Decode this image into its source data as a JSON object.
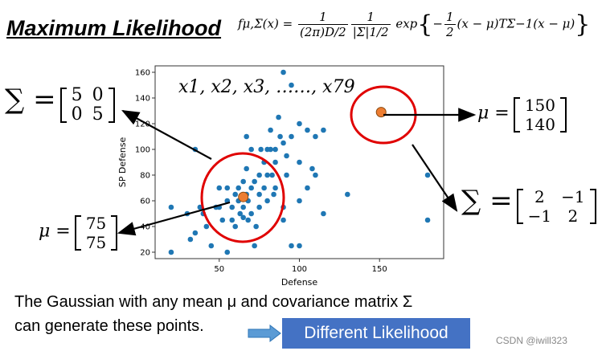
{
  "title": "Maximum Likelihood",
  "formula": {
    "lhs": "fμ,Σ(x) =",
    "num1": "1",
    "den1": "(2π)D/2",
    "num2": "1",
    "den2": "|Σ|1/2",
    "exp": "exp",
    "inner_num": "1",
    "inner_den": "2",
    "inner_rest": "(x − μ)TΣ−1(x − μ)"
  },
  "samples_label": "x1, x2, x3, ……, x79",
  "left_cov": {
    "symbol": "∑ =",
    "rows": [
      [
        "5",
        "0"
      ],
      [
        "0",
        "5"
      ]
    ]
  },
  "left_mean": {
    "symbol": "μ =",
    "rows": [
      [
        "75"
      ],
      [
        "75"
      ]
    ]
  },
  "right_mean": {
    "symbol": "μ =",
    "rows": [
      [
        "150"
      ],
      [
        "140"
      ]
    ]
  },
  "right_cov": {
    "symbol": "∑ =",
    "rows": [
      [
        "2",
        "−1"
      ],
      [
        "−1",
        "2"
      ]
    ]
  },
  "caption": {
    "line1": "The Gaussian with any mean μ and covariance matrix Σ",
    "line2": "can generate these points."
  },
  "button_label": "Different Likelihood",
  "watermark": "CSDN @iwill323",
  "colors": {
    "points": "#1f77b4",
    "mean": "#ed7d31",
    "circle": "#e00000",
    "button": "#4472c4"
  },
  "chart_data": {
    "type": "scatter",
    "xlabel": "Defense",
    "ylabel": "SP Defense",
    "xlim": [
      10,
      190
    ],
    "ylim": [
      15,
      165
    ],
    "xticks": [
      50,
      100,
      150
    ],
    "yticks": [
      20,
      40,
      60,
      80,
      100,
      120,
      140,
      160
    ],
    "points": [
      [
        20,
        55
      ],
      [
        20,
        20
      ],
      [
        30,
        50
      ],
      [
        32,
        30
      ],
      [
        35,
        35
      ],
      [
        35,
        100
      ],
      [
        38,
        55
      ],
      [
        40,
        50
      ],
      [
        42,
        40
      ],
      [
        45,
        25
      ],
      [
        48,
        55
      ],
      [
        50,
        70
      ],
      [
        50,
        55
      ],
      [
        52,
        45
      ],
      [
        55,
        70
      ],
      [
        55,
        60
      ],
      [
        55,
        20
      ],
      [
        58,
        55
      ],
      [
        58,
        45
      ],
      [
        60,
        65
      ],
      [
        60,
        40
      ],
      [
        62,
        70
      ],
      [
        62,
        60
      ],
      [
        63,
        50
      ],
      [
        65,
        75
      ],
      [
        65,
        55
      ],
      [
        65,
        47
      ],
      [
        67,
        110
      ],
      [
        67,
        85
      ],
      [
        67,
        65
      ],
      [
        68,
        60
      ],
      [
        68,
        45
      ],
      [
        70,
        50
      ],
      [
        70,
        70
      ],
      [
        70,
        100
      ],
      [
        72,
        75
      ],
      [
        72,
        25
      ],
      [
        73,
        40
      ],
      [
        75,
        80
      ],
      [
        75,
        65
      ],
      [
        75,
        55
      ],
      [
        76,
        100
      ],
      [
        78,
        90
      ],
      [
        78,
        70
      ],
      [
        80,
        100
      ],
      [
        80,
        80
      ],
      [
        80,
        60
      ],
      [
        82,
        100
      ],
      [
        82,
        115
      ],
      [
        83,
        80
      ],
      [
        84,
        65
      ],
      [
        85,
        90
      ],
      [
        85,
        70
      ],
      [
        85,
        100
      ],
      [
        87,
        125
      ],
      [
        88,
        110
      ],
      [
        90,
        160
      ],
      [
        90,
        105
      ],
      [
        90,
        55
      ],
      [
        90,
        45
      ],
      [
        92,
        95
      ],
      [
        92,
        80
      ],
      [
        95,
        150
      ],
      [
        95,
        110
      ],
      [
        95,
        25
      ],
      [
        100,
        120
      ],
      [
        100,
        90
      ],
      [
        100,
        25
      ],
      [
        100,
        60
      ],
      [
        105,
        70
      ],
      [
        105,
        115
      ],
      [
        108,
        85
      ],
      [
        110,
        80
      ],
      [
        110,
        110
      ],
      [
        115,
        115
      ],
      [
        115,
        50
      ],
      [
        130,
        65
      ],
      [
        180,
        45
      ],
      [
        180,
        80
      ]
    ],
    "means": [
      [
        65,
        63
      ],
      [
        151,
        129
      ]
    ]
  }
}
